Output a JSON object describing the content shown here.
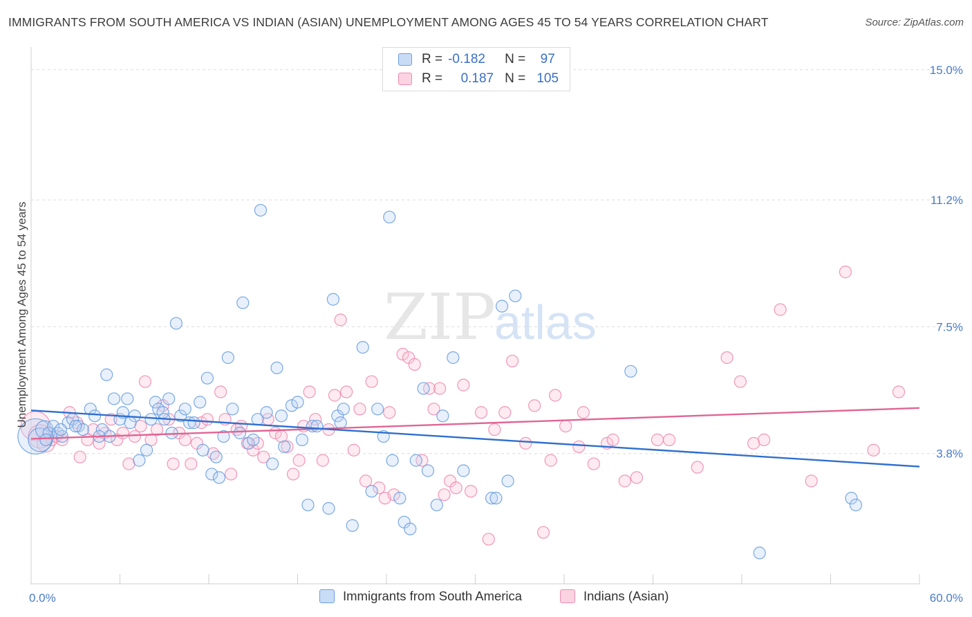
{
  "title": "IMMIGRANTS FROM SOUTH AMERICA VS INDIAN (ASIAN) UNEMPLOYMENT AMONG AGES 45 TO 54 YEARS CORRELATION CHART",
  "source": "Source: ZipAtlas.com",
  "watermark": {
    "zip": "ZIP",
    "atlas": "atlas"
  },
  "colors": {
    "blue": "#6a9fe0",
    "blue_line": "#2f6fce",
    "pink": "#f08bb0",
    "pink_line": "#e06593",
    "tick": "#4a7cc9",
    "grid": "#d9d9d9"
  },
  "legend": {
    "rows": [
      {
        "r_label": "R =",
        "r_value": "-0.182",
        "n_label": "N =",
        "n_value": "97",
        "color": "#6a9fe0"
      },
      {
        "r_label": "R =",
        "r_value": "0.187",
        "n_label": "N =",
        "n_value": "105",
        "color": "#f08bb0"
      }
    ]
  },
  "bottom_legend": [
    {
      "label": "Immigrants from South America",
      "color": "#6a9fe0"
    },
    {
      "label": "Indians (Asian)",
      "color": "#f08bb0"
    }
  ],
  "chart_data": {
    "type": "scatter",
    "title": "IMMIGRANTS FROM SOUTH AMERICA VS INDIAN (ASIAN) UNEMPLOYMENT AMONG AGES 45 TO 54 YEARS CORRELATION CHART",
    "xlabel": "",
    "ylabel": "Unemployment Among Ages 45 to 54 years",
    "xlim": [
      0,
      60
    ],
    "ylim": [
      0,
      15.5
    ],
    "x_tick_labels": [
      "0.0%",
      "60.0%"
    ],
    "y_ticks": [
      3.8,
      7.5,
      11.2,
      15.0
    ],
    "y_tick_labels": [
      "3.8%",
      "7.5%",
      "11.2%",
      "15.0%"
    ],
    "grid": true,
    "legend_position": "top-center",
    "series": [
      {
        "name": "Immigrants from South America",
        "color": "#6a9fe0",
        "trend": {
          "x": [
            0,
            60
          ],
          "y": [
            5.06,
            3.42
          ]
        },
        "points": [
          [
            0.3,
            4.3,
            3
          ],
          [
            0.6,
            4.2,
            2
          ],
          [
            0.9,
            4.5,
            1.5
          ],
          [
            1.2,
            4.4,
            1
          ],
          [
            1.5,
            4.6,
            1
          ],
          [
            1.8,
            4.4,
            1
          ],
          [
            2.1,
            4.3,
            1
          ],
          [
            2.5,
            4.7,
            1
          ],
          [
            2.8,
            4.8,
            1
          ],
          [
            3.2,
            4.6,
            1
          ],
          [
            3.5,
            4.5,
            1
          ],
          [
            4.0,
            5.1,
            1
          ],
          [
            4.3,
            4.9,
            1
          ],
          [
            4.8,
            4.5,
            1
          ],
          [
            5.1,
            6.1,
            1
          ],
          [
            5.3,
            4.3,
            1
          ],
          [
            5.6,
            5.4,
            1
          ],
          [
            6.0,
            4.8,
            1
          ],
          [
            6.2,
            5.0,
            1
          ],
          [
            6.5,
            5.4,
            1
          ],
          [
            7.0,
            4.9,
            1
          ],
          [
            7.3,
            3.6,
            1
          ],
          [
            7.8,
            3.9,
            1
          ],
          [
            8.1,
            4.8,
            1
          ],
          [
            8.4,
            5.3,
            1
          ],
          [
            8.6,
            5.1,
            1
          ],
          [
            8.9,
            5.0,
            1
          ],
          [
            9.3,
            5.4,
            1
          ],
          [
            9.5,
            4.4,
            1
          ],
          [
            9.8,
            7.6,
            1
          ],
          [
            10.1,
            4.9,
            1
          ],
          [
            10.4,
            5.1,
            1
          ],
          [
            10.7,
            4.7,
            1
          ],
          [
            11.0,
            4.7,
            1
          ],
          [
            11.4,
            5.3,
            1
          ],
          [
            11.6,
            3.9,
            1
          ],
          [
            11.9,
            6.0,
            1
          ],
          [
            12.2,
            3.2,
            1
          ],
          [
            12.5,
            3.7,
            1
          ],
          [
            12.7,
            3.1,
            1
          ],
          [
            13.0,
            4.3,
            1
          ],
          [
            13.3,
            6.6,
            1
          ],
          [
            13.6,
            5.1,
            1
          ],
          [
            14.1,
            4.4,
            1
          ],
          [
            14.3,
            8.2,
            1
          ],
          [
            14.7,
            4.1,
            1
          ],
          [
            15.0,
            4.2,
            1
          ],
          [
            15.3,
            4.8,
            1
          ],
          [
            15.5,
            10.9,
            1
          ],
          [
            15.9,
            5.0,
            1
          ],
          [
            16.3,
            3.5,
            1
          ],
          [
            16.6,
            6.3,
            1
          ],
          [
            16.9,
            4.9,
            1
          ],
          [
            17.1,
            4.0,
            1
          ],
          [
            17.6,
            5.2,
            1
          ],
          [
            18.0,
            5.3,
            1
          ],
          [
            18.3,
            4.2,
            1
          ],
          [
            18.7,
            2.3,
            1
          ],
          [
            19.0,
            4.6,
            1
          ],
          [
            19.3,
            4.6,
            1
          ],
          [
            20.1,
            2.2,
            1
          ],
          [
            20.4,
            8.3,
            1
          ],
          [
            20.7,
            4.9,
            1
          ],
          [
            20.9,
            4.7,
            1
          ],
          [
            21.1,
            5.1,
            1
          ],
          [
            21.7,
            1.7,
            1
          ],
          [
            22.4,
            6.9,
            1
          ],
          [
            23.0,
            2.7,
            1
          ],
          [
            23.4,
            5.1,
            1
          ],
          [
            23.8,
            4.3,
            1
          ],
          [
            24.2,
            10.7,
            1
          ],
          [
            24.4,
            3.6,
            1
          ],
          [
            24.9,
            2.5,
            1
          ],
          [
            25.2,
            1.8,
            1
          ],
          [
            25.6,
            1.6,
            1
          ],
          [
            26.0,
            3.6,
            1
          ],
          [
            26.5,
            5.7,
            1
          ],
          [
            26.8,
            3.3,
            1
          ],
          [
            27.4,
            2.3,
            1
          ],
          [
            27.8,
            4.9,
            1
          ],
          [
            28.5,
            6.6,
            1
          ],
          [
            29.2,
            3.3,
            1
          ],
          [
            31.1,
            2.5,
            1
          ],
          [
            31.4,
            2.5,
            1
          ],
          [
            31.8,
            8.1,
            1
          ],
          [
            32.2,
            3.0,
            1
          ],
          [
            32.7,
            8.4,
            1
          ],
          [
            40.5,
            6.2,
            1
          ],
          [
            49.2,
            0.9,
            1
          ],
          [
            55.4,
            2.5,
            1
          ],
          [
            55.7,
            2.3,
            1
          ],
          [
            1.0,
            4.2,
            1
          ],
          [
            2.0,
            4.5,
            1
          ],
          [
            3.0,
            4.6,
            1
          ],
          [
            4.6,
            4.3,
            1
          ],
          [
            6.7,
            4.7,
            1
          ],
          [
            9.0,
            4.8,
            1
          ]
        ]
      },
      {
        "name": "Indians (Asian)",
        "color": "#f08bb0",
        "trend": {
          "x": [
            0,
            60
          ],
          "y": [
            4.23,
            5.13
          ]
        },
        "points": [
          [
            0.3,
            4.6,
            2.5
          ],
          [
            0.6,
            4.3,
            2
          ],
          [
            1.0,
            4.1,
            1.5
          ],
          [
            1.4,
            4.2,
            1
          ],
          [
            1.7,
            4.3,
            1
          ],
          [
            2.1,
            4.2,
            1
          ],
          [
            2.6,
            5.0,
            1
          ],
          [
            3.1,
            4.7,
            1
          ],
          [
            3.3,
            3.7,
            1
          ],
          [
            3.8,
            4.2,
            1
          ],
          [
            4.2,
            4.5,
            1
          ],
          [
            4.6,
            4.1,
            1
          ],
          [
            5.0,
            4.4,
            1
          ],
          [
            5.4,
            4.8,
            1
          ],
          [
            5.8,
            4.2,
            1
          ],
          [
            6.2,
            4.4,
            1
          ],
          [
            6.6,
            3.5,
            1
          ],
          [
            7.0,
            4.3,
            1
          ],
          [
            7.4,
            4.6,
            1
          ],
          [
            7.7,
            5.9,
            1
          ],
          [
            8.1,
            4.2,
            1
          ],
          [
            8.5,
            4.5,
            1
          ],
          [
            8.9,
            5.2,
            1
          ],
          [
            9.3,
            4.8,
            1
          ],
          [
            9.6,
            3.5,
            1
          ],
          [
            10.0,
            4.4,
            1
          ],
          [
            10.4,
            4.2,
            1
          ],
          [
            10.8,
            3.5,
            1
          ],
          [
            11.2,
            4.1,
            1
          ],
          [
            11.5,
            4.7,
            1
          ],
          [
            11.9,
            4.8,
            1
          ],
          [
            12.3,
            3.8,
            1
          ],
          [
            12.8,
            5.6,
            1
          ],
          [
            13.1,
            4.8,
            1
          ],
          [
            13.5,
            3.2,
            1
          ],
          [
            13.9,
            4.5,
            1
          ],
          [
            14.2,
            4.6,
            1
          ],
          [
            14.6,
            4.1,
            1
          ],
          [
            15.0,
            3.9,
            1
          ],
          [
            15.3,
            4.1,
            1
          ],
          [
            15.7,
            3.7,
            1
          ],
          [
            16.0,
            4.8,
            1
          ],
          [
            16.5,
            4.4,
            1
          ],
          [
            16.9,
            4.3,
            1
          ],
          [
            17.3,
            4.0,
            1
          ],
          [
            17.7,
            3.2,
            1
          ],
          [
            18.1,
            3.6,
            1
          ],
          [
            18.4,
            4.6,
            1
          ],
          [
            18.8,
            5.6,
            1
          ],
          [
            19.2,
            4.8,
            1
          ],
          [
            19.7,
            3.6,
            1
          ],
          [
            20.1,
            4.5,
            1
          ],
          [
            20.5,
            5.5,
            1
          ],
          [
            20.9,
            7.7,
            1
          ],
          [
            21.3,
            5.6,
            1
          ],
          [
            21.8,
            3.9,
            1
          ],
          [
            22.2,
            5.1,
            1
          ],
          [
            22.6,
            3.0,
            1
          ],
          [
            23.0,
            5.9,
            1
          ],
          [
            23.5,
            2.8,
            1
          ],
          [
            23.9,
            2.5,
            1
          ],
          [
            24.2,
            5.0,
            1
          ],
          [
            24.5,
            2.6,
            1
          ],
          [
            25.1,
            6.7,
            1
          ],
          [
            25.5,
            6.6,
            1
          ],
          [
            25.9,
            6.4,
            1
          ],
          [
            26.4,
            3.6,
            1
          ],
          [
            26.9,
            5.7,
            1
          ],
          [
            27.2,
            5.1,
            1
          ],
          [
            27.6,
            5.7,
            1
          ],
          [
            27.9,
            2.6,
            1
          ],
          [
            28.3,
            3.0,
            1
          ],
          [
            28.7,
            2.8,
            1
          ],
          [
            29.2,
            5.8,
            1
          ],
          [
            29.7,
            2.7,
            1
          ],
          [
            30.4,
            5.0,
            1
          ],
          [
            30.9,
            1.3,
            1
          ],
          [
            31.3,
            4.5,
            1
          ],
          [
            32.0,
            5.0,
            1
          ],
          [
            32.5,
            6.5,
            1
          ],
          [
            33.4,
            4.1,
            1
          ],
          [
            34.0,
            5.2,
            1
          ],
          [
            34.6,
            1.5,
            1
          ],
          [
            35.1,
            3.6,
            1
          ],
          [
            35.4,
            5.5,
            1
          ],
          [
            36.1,
            4.6,
            1
          ],
          [
            37.0,
            4.0,
            1
          ],
          [
            37.3,
            5.0,
            1
          ],
          [
            38.0,
            3.5,
            1
          ],
          [
            38.9,
            4.1,
            1
          ],
          [
            39.3,
            4.2,
            1
          ],
          [
            40.1,
            3.0,
            1
          ],
          [
            40.9,
            3.1,
            1
          ],
          [
            42.3,
            4.2,
            1
          ],
          [
            43.1,
            4.2,
            1
          ],
          [
            45.0,
            3.4,
            1
          ],
          [
            47.0,
            6.6,
            1
          ],
          [
            47.9,
            5.9,
            1
          ],
          [
            48.8,
            4.1,
            1
          ],
          [
            49.5,
            4.2,
            1
          ],
          [
            50.6,
            8.0,
            1
          ],
          [
            52.7,
            3.0,
            1
          ],
          [
            55.0,
            9.1,
            1
          ],
          [
            56.9,
            3.9,
            1
          ],
          [
            58.6,
            5.6,
            1
          ]
        ]
      }
    ]
  }
}
